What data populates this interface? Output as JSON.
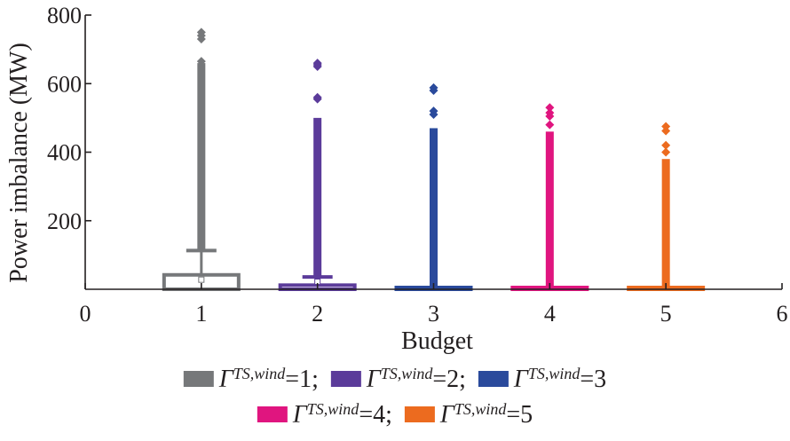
{
  "chart_data": {
    "type": "box",
    "xlabel": "Budget",
    "ylabel": "Power imbalance (MW)",
    "xlim": [
      0,
      6
    ],
    "ylim": [
      0,
      800
    ],
    "xticks": [
      0,
      1,
      2,
      3,
      4,
      5,
      6
    ],
    "yticks": [
      200,
      400,
      600,
      800
    ],
    "series": [
      {
        "name": "Γ^{TS,wind}=1",
        "legend_symbol": "Γ",
        "legend_sup": "TS,wind",
        "legend_rest": "=1;",
        "color": "#76787a",
        "x": 1,
        "q1": 0,
        "median": 0,
        "q3": 42,
        "mean": 28,
        "whisker_low": 0,
        "whisker_high": 113,
        "outliers_from": 113,
        "outliers_to": 660,
        "sparse_outliers": [
          665,
          730,
          740,
          750
        ]
      },
      {
        "name": "Γ^{TS,wind}=2",
        "legend_symbol": "Γ",
        "legend_sup": "TS,wind",
        "legend_rest": "=2;",
        "color": "#5b3b9a",
        "x": 2,
        "q1": 0,
        "median": 0,
        "q3": 12,
        "mean": 22,
        "whisker_low": 0,
        "whisker_high": 36,
        "outliers_from": 36,
        "outliers_to": 500,
        "sparse_outliers": [
          555,
          560,
          650,
          655,
          660
        ]
      },
      {
        "name": "Γ^{TS,wind}=3",
        "legend_symbol": "Γ",
        "legend_sup": "TS,wind",
        "legend_rest": "=3",
        "color": "#2a4a9c",
        "x": 3,
        "q1": 0,
        "median": 0,
        "q3": 1,
        "mean": 0,
        "whisker_low": 0,
        "whisker_high": 2,
        "outliers_from": 2,
        "outliers_to": 470,
        "sparse_outliers": [
          510,
          520,
          580,
          588
        ]
      },
      {
        "name": "Γ^{TS,wind}=4",
        "legend_symbol": "Γ",
        "legend_sup": "TS,wind",
        "legend_rest": "=4;",
        "color": "#e0157f",
        "x": 4,
        "q1": 0,
        "median": 0,
        "q3": 1,
        "mean": 0,
        "whisker_low": 0,
        "whisker_high": 2,
        "outliers_from": 2,
        "outliers_to": 460,
        "sparse_outliers": [
          480,
          505,
          515,
          530
        ]
      },
      {
        "name": "Γ^{TS,wind}=5",
        "legend_symbol": "Γ",
        "legend_sup": "TS,wind",
        "legend_rest": "=5",
        "color": "#ec6b1f",
        "x": 5,
        "q1": 0,
        "median": 0,
        "q3": 1,
        "mean": 0,
        "whisker_low": 0,
        "whisker_high": 2,
        "outliers_from": 2,
        "outliers_to": 380,
        "sparse_outliers": [
          400,
          420,
          462,
          475
        ]
      }
    ],
    "legend": {
      "placement": "bottom"
    }
  }
}
